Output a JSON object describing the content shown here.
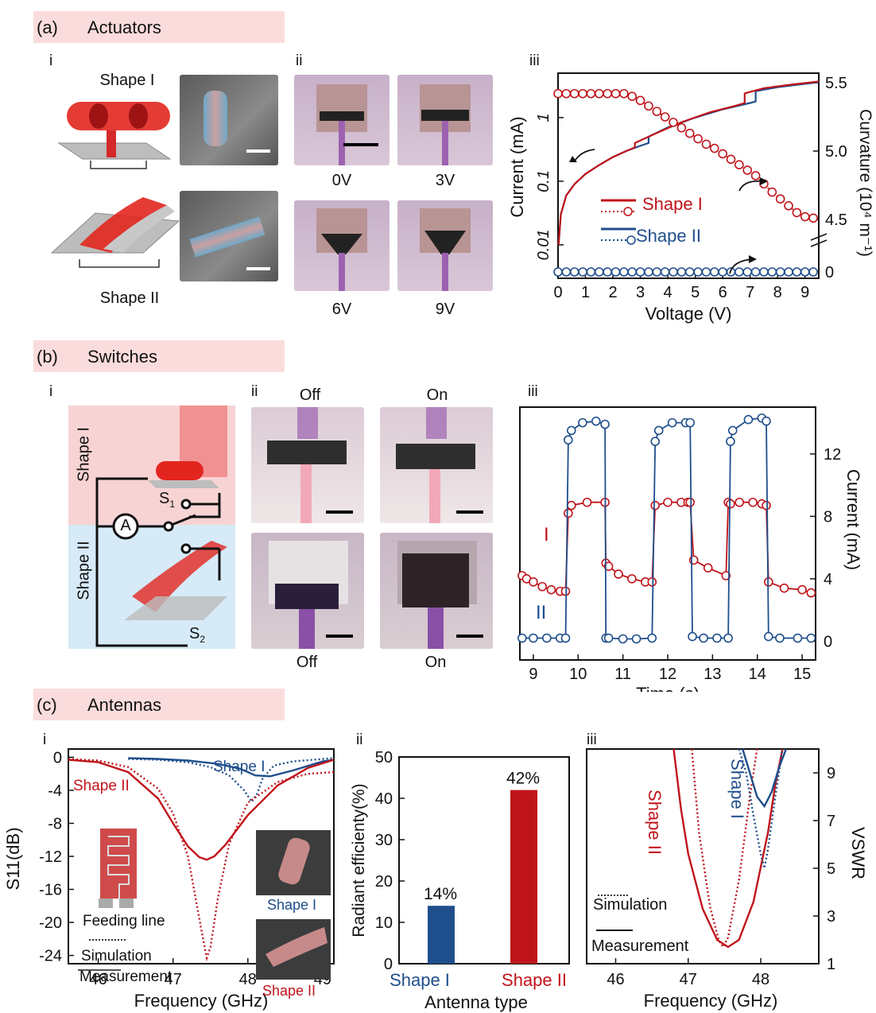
{
  "sections": {
    "a": {
      "tag": "(a)",
      "title": "Actuators"
    },
    "b": {
      "tag": "(b)",
      "title": "Switches"
    },
    "c": {
      "tag": "(c)",
      "title": "Antennas"
    }
  },
  "panel_a": {
    "i": {
      "roman": "i",
      "shape1_label": "Shape I",
      "shape2_label": "Shape II"
    },
    "ii": {
      "roman": "ii",
      "voltages": [
        "0V",
        "3V",
        "6V",
        "9V"
      ]
    }
  },
  "panel_b": {
    "i": {
      "roman": "i",
      "shape1_label": "Shape I",
      "shape2_label": "Shape II",
      "ammeter": "A",
      "s1": "S",
      "s1_sub": "1",
      "s2": "S",
      "s2_sub": "2"
    },
    "ii": {
      "roman": "ii",
      "top_labels": [
        "Off",
        "On"
      ],
      "bottom_labels": [
        "Off",
        "On"
      ]
    }
  },
  "panel_c": {
    "i": {
      "inset_feed": "Feeding line",
      "inset_shape1": "Shape I",
      "inset_shape2": "Shape II"
    }
  },
  "colors": {
    "red": "#c0141b",
    "blue": "#1f4e8c",
    "section_bg": "#fbdcdc"
  },
  "chart_data": [
    {
      "id": "a-iii",
      "type": "line",
      "roman": "iii",
      "xlabel": "Voltage (V)",
      "ylabel": "Current (mA)",
      "y2label": "Curvature (10⁴ m⁻¹)",
      "xlim": [
        0,
        9.5
      ],
      "xticks": [
        "0",
        "1",
        "2",
        "3",
        "4",
        "5",
        "6",
        "7",
        "8",
        "9"
      ],
      "ylog": true,
      "ylim": [
        0.005,
        5
      ],
      "yticks": [
        "0.01",
        "0.1",
        "1"
      ],
      "y2ticks": [
        "0",
        "4.5",
        "5.0",
        "5.5"
      ],
      "legend": [
        "Shape I",
        "Shape II"
      ],
      "current_shape1": {
        "x": [
          0.02,
          0.1,
          0.3,
          0.6,
          1.0,
          1.5,
          2.0,
          2.5,
          2.8,
          2.8,
          3.5,
          4.5,
          5.5,
          6.5,
          6.8,
          6.8,
          7.5,
          8.5,
          9.5
        ],
        "y": [
          0.01,
          0.03,
          0.06,
          0.09,
          0.13,
          0.18,
          0.24,
          0.3,
          0.34,
          0.4,
          0.55,
          0.85,
          1.2,
          1.55,
          1.7,
          2.4,
          2.9,
          3.3,
          3.7
        ]
      },
      "current_shape2": {
        "x": [
          0.02,
          0.1,
          0.3,
          0.6,
          1.0,
          1.5,
          2.0,
          2.5,
          3.0,
          3.3,
          3.3,
          4.0,
          5.0,
          6.0,
          7.0,
          7.2,
          7.2,
          8.0,
          9.0,
          9.5
        ],
        "y": [
          0.01,
          0.03,
          0.06,
          0.09,
          0.13,
          0.18,
          0.24,
          0.3,
          0.36,
          0.4,
          0.5,
          0.7,
          1.0,
          1.35,
          1.7,
          1.8,
          2.6,
          3.0,
          3.4,
          3.6
        ]
      },
      "curvature_shape1": {
        "x": [
          0,
          0.3,
          0.6,
          0.9,
          1.2,
          1.5,
          1.8,
          2.1,
          2.4,
          2.7,
          3.0,
          3.3,
          3.6,
          3.9,
          4.2,
          4.5,
          4.8,
          5.1,
          5.4,
          5.7,
          6.0,
          6.3,
          6.6,
          6.9,
          7.2,
          7.5,
          7.8,
          8.1,
          8.4,
          8.7,
          9.0,
          9.3
        ],
        "y": [
          5.42,
          5.42,
          5.42,
          5.42,
          5.42,
          5.42,
          5.42,
          5.42,
          5.42,
          5.4,
          5.37,
          5.33,
          5.29,
          5.25,
          5.21,
          5.17,
          5.13,
          5.09,
          5.05,
          5.02,
          4.98,
          4.94,
          4.9,
          4.86,
          4.82,
          4.76,
          4.7,
          4.65,
          4.6,
          4.55,
          4.52,
          4.51
        ]
      },
      "curvature_shape2": {
        "x": [
          0,
          0.3,
          0.6,
          0.9,
          1.2,
          1.5,
          1.8,
          2.1,
          2.4,
          2.7,
          3.0,
          3.3,
          3.6,
          3.9,
          4.2,
          4.5,
          4.8,
          5.1,
          5.4,
          5.7,
          6.0,
          6.3,
          6.6,
          6.9,
          7.2,
          7.5,
          7.8,
          8.1,
          8.4,
          8.7,
          9.0,
          9.3
        ],
        "y": [
          0,
          0,
          0,
          0,
          0,
          0,
          0,
          0,
          0,
          0,
          0,
          0,
          0,
          0,
          0,
          0,
          0,
          0,
          0,
          0,
          0,
          0,
          0,
          0,
          0,
          0,
          0,
          0,
          0,
          0,
          0,
          0
        ]
      }
    },
    {
      "id": "b-iii",
      "type": "line",
      "roman": "iii",
      "xlabel": "Time (s)",
      "ylabel": "Current (mA)",
      "xlim": [
        8.7,
        15.3
      ],
      "ylim": [
        -1.2,
        15
      ],
      "xticks": [
        "9",
        "10",
        "11",
        "12",
        "13",
        "14",
        "15"
      ],
      "yticks": [
        "0",
        "4",
        "8",
        "12"
      ],
      "series": [
        {
          "name": "I",
          "x": [
            8.75,
            8.85,
            9.0,
            9.2,
            9.4,
            9.6,
            9.72,
            9.78,
            9.85,
            10.2,
            10.6,
            10.62,
            10.68,
            10.9,
            11.2,
            11.5,
            11.65,
            11.72,
            12.0,
            12.3,
            12.45,
            12.5,
            12.58,
            12.9,
            13.3,
            13.35,
            13.4,
            13.6,
            13.9,
            14.1,
            14.2,
            14.25,
            14.6,
            15.0,
            15.2
          ],
          "y": [
            4.2,
            4.0,
            3.8,
            3.5,
            3.3,
            3.2,
            3.2,
            8.2,
            8.7,
            8.9,
            8.9,
            5.0,
            4.8,
            4.3,
            4.0,
            3.8,
            3.8,
            8.7,
            8.9,
            8.9,
            8.9,
            8.9,
            5.2,
            4.7,
            4.2,
            8.9,
            8.8,
            8.9,
            8.9,
            8.8,
            8.7,
            3.8,
            3.4,
            3.3,
            3.1
          ],
          "shifts": null
        },
        {
          "name": "II",
          "x": [
            8.75,
            9.0,
            9.3,
            9.6,
            9.72,
            9.78,
            9.85,
            10.1,
            10.4,
            10.6,
            10.62,
            10.68,
            11.0,
            11.3,
            11.65,
            11.72,
            11.8,
            12.1,
            12.4,
            12.5,
            12.55,
            12.8,
            13.1,
            13.35,
            13.4,
            13.45,
            13.8,
            14.1,
            14.2,
            14.25,
            14.5,
            14.9,
            15.2
          ],
          "y": [
            0.2,
            0.2,
            0.2,
            0.2,
            0.2,
            12.9,
            13.5,
            14.0,
            14.1,
            13.9,
            0.2,
            0.2,
            0.15,
            0.15,
            0.2,
            12.8,
            13.5,
            14.0,
            14.0,
            14.0,
            0.3,
            0.2,
            0.2,
            0.2,
            12.8,
            13.5,
            14.2,
            14.3,
            14.1,
            0.3,
            0.2,
            0.2,
            0.2
          ]
        }
      ]
    },
    {
      "id": "c-i",
      "type": "line",
      "roman": "i",
      "xlabel": "Frequency (GHz)",
      "ylabel": "S11(dB)",
      "xlim": [
        45.6,
        49.15
      ],
      "ylim": [
        -25,
        1
      ],
      "xticks": [
        "46",
        "47",
        "48",
        "49"
      ],
      "yticks": [
        "0",
        "-4",
        "-8",
        "-12",
        "-16",
        "-20",
        "-24"
      ],
      "legend": [
        "Simulation",
        "Measurement"
      ],
      "series": [
        {
          "name": "Shape I",
          "style": "measured",
          "x": [
            46.4,
            46.8,
            47.2,
            47.6,
            47.9,
            48.1,
            48.3,
            48.6,
            49.0,
            49.15
          ],
          "y": [
            -0.1,
            -0.2,
            -0.4,
            -0.8,
            -1.4,
            -2.2,
            -2.3,
            -1.6,
            -0.5,
            -0.3
          ]
        },
        {
          "name": "Shape I",
          "style": "simulated",
          "x": [
            46.4,
            46.8,
            47.2,
            47.5,
            47.75,
            47.95,
            48.05,
            48.12,
            48.2,
            48.35,
            48.6,
            49.0,
            49.15
          ],
          "y": [
            -0.2,
            -0.3,
            -0.6,
            -1.2,
            -2.2,
            -4.0,
            -5.4,
            -4.5,
            -2.5,
            -1.0,
            -0.5,
            -0.2,
            -0.1
          ]
        },
        {
          "name": "Shape II",
          "style": "measured",
          "x": [
            45.6,
            46.0,
            46.4,
            46.8,
            47.0,
            47.2,
            47.35,
            47.45,
            47.55,
            47.7,
            48.0,
            48.4,
            48.8,
            49.15
          ],
          "y": [
            -0.3,
            -0.6,
            -1.8,
            -5.0,
            -8.0,
            -10.8,
            -12.1,
            -12.4,
            -12.0,
            -10.6,
            -7.0,
            -3.4,
            -1.3,
            -0.3
          ]
        },
        {
          "name": "Shape II",
          "style": "simulated",
          "x": [
            45.6,
            46.0,
            46.4,
            46.8,
            47.0,
            47.2,
            47.3,
            47.4,
            47.45,
            47.5,
            47.6,
            47.75,
            48.0,
            48.4,
            48.8,
            49.15
          ],
          "y": [
            -0.2,
            -0.4,
            -1.2,
            -3.8,
            -6.8,
            -12.0,
            -17.0,
            -22.0,
            -24.3,
            -23.0,
            -17.0,
            -10.5,
            -5.5,
            -3.0,
            -2.0,
            -1.8
          ]
        }
      ]
    },
    {
      "id": "c-ii",
      "type": "bar",
      "roman": "ii",
      "xlabel": "Antenna type",
      "ylabel": "Radiant efficienty(%)",
      "ylim": [
        0,
        50
      ],
      "yticks": [
        "0",
        "10",
        "20",
        "30",
        "40",
        "50"
      ],
      "categories": [
        "Shape I",
        "Shape II"
      ],
      "values": [
        14,
        42
      ],
      "data_labels": [
        "14%",
        "42%"
      ]
    },
    {
      "id": "c-iii",
      "type": "line",
      "roman": "iii",
      "xlabel": "Frequency (GHz)",
      "ylabel": "VSWR",
      "xlim": [
        45.6,
        48.8
      ],
      "ylim": [
        1,
        10
      ],
      "xticks": [
        "46",
        "47",
        "48"
      ],
      "yticks": [
        "1",
        "3",
        "5",
        "7",
        "9"
      ],
      "legend": [
        "Simulation",
        "Measurement"
      ],
      "series": [
        {
          "name": "Shape II",
          "style": "measured",
          "x": [
            46.8,
            46.9,
            47.0,
            47.2,
            47.4,
            47.55,
            47.7,
            47.9,
            48.1,
            48.2,
            48.3
          ],
          "y": [
            10.0,
            7.5,
            5.6,
            3.3,
            2.0,
            1.7,
            2.0,
            3.6,
            6.5,
            8.5,
            10.0
          ]
        },
        {
          "name": "Shape II",
          "style": "simulated",
          "x": [
            47.05,
            47.15,
            47.3,
            47.42,
            47.48,
            47.55,
            47.7,
            47.85,
            47.95
          ],
          "y": [
            10.0,
            6.5,
            3.4,
            2.0,
            1.7,
            2.1,
            4.5,
            8.0,
            10.0
          ]
        },
        {
          "name": "Shape I",
          "style": "measured",
          "x": [
            47.75,
            47.85,
            47.95,
            48.05,
            48.15,
            48.25,
            48.35
          ],
          "y": [
            10.0,
            9.0,
            8.0,
            7.6,
            8.2,
            9.2,
            10.0
          ]
        },
        {
          "name": "Shape I",
          "style": "simulated",
          "x": [
            47.7,
            47.8,
            47.9,
            48.0,
            48.05,
            48.1,
            48.2,
            48.3
          ],
          "y": [
            10.0,
            9.0,
            7.2,
            5.6,
            5.0,
            5.8,
            8.0,
            10.0
          ]
        }
      ]
    }
  ]
}
